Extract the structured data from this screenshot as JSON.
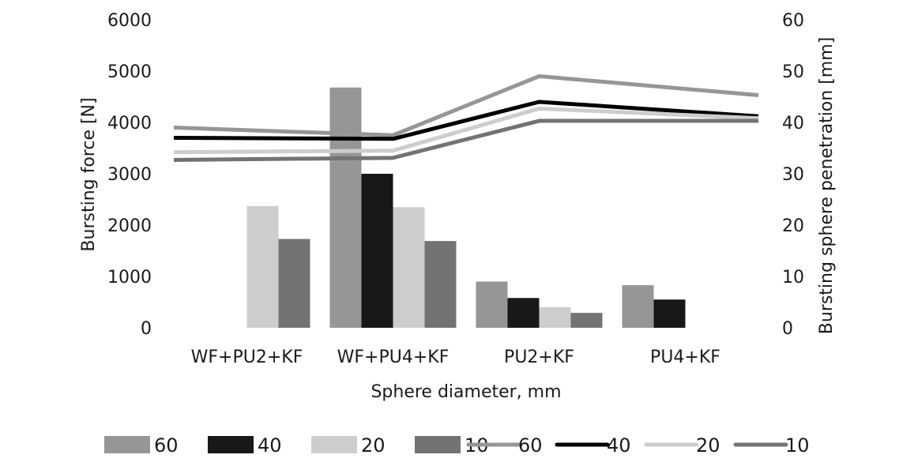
{
  "chart_data": {
    "type": "bar",
    "xlabel": "Sphere diameter, mm",
    "ylabel": "Bursting force [N]",
    "y2label": "Bursting sphere penetration [mm]",
    "categories": [
      "WF+PU2+KF",
      "WF+PU4+KF",
      "PU2+KF",
      "PU4+KF"
    ],
    "ylim": [
      0,
      6000
    ],
    "yticks": [
      0,
      1000,
      2000,
      3000,
      4000,
      5000,
      6000
    ],
    "y2lim": [
      0,
      60
    ],
    "y2ticks": [
      0,
      10,
      20,
      30,
      40,
      50,
      60
    ],
    "bar_series": [
      {
        "name": "60",
        "color": "#969696",
        "values": [
          null,
          4680,
          900,
          830
        ]
      },
      {
        "name": "40",
        "color": "#161819",
        "values": [
          null,
          3000,
          580,
          550
        ]
      },
      {
        "name": "20",
        "color": "#cdcdcd",
        "values": [
          2370,
          2350,
          400,
          null
        ]
      },
      {
        "name": "10",
        "color": "#737373",
        "values": [
          1730,
          1690,
          290,
          null
        ]
      }
    ],
    "line_series": [
      {
        "name": "60",
        "color": "#969696",
        "values": [
          39,
          37.5,
          49,
          45.3
        ]
      },
      {
        "name": "40",
        "color": "#000000",
        "values": [
          37,
          36.8,
          44,
          41.2
        ]
      },
      {
        "name": "20",
        "color": "#cdcdcd",
        "values": [
          34.2,
          34.5,
          42.7,
          40.8
        ]
      },
      {
        "name": "10",
        "color": "#737373",
        "values": [
          32.7,
          33.1,
          40.3,
          40.3
        ]
      }
    ],
    "grid": false,
    "legend": "bottom"
  }
}
